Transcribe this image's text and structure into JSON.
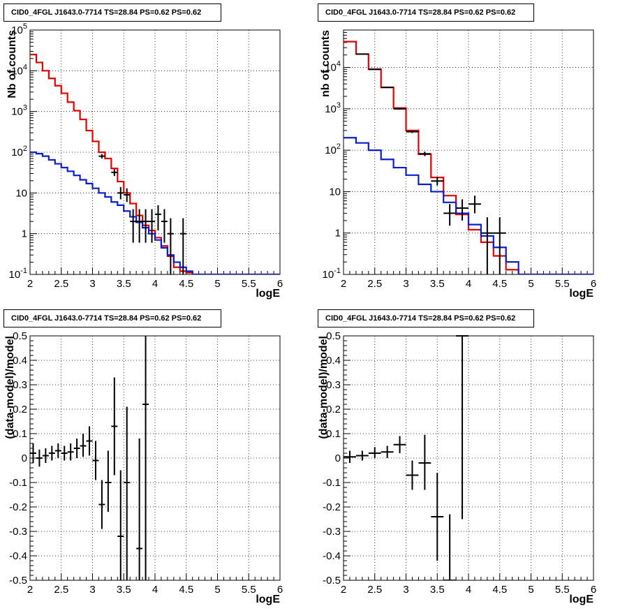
{
  "colors": {
    "data": "#000000",
    "total_model": "#e00000",
    "component_model": "#0a1ecc",
    "grid": "#000000"
  },
  "chart_data": [
    {
      "id": "counts-left",
      "type": "line",
      "title": "CID0_4FGL J1643.0-7714 TS=28.84 PS=0.62 PS=0.62",
      "xlabel": "logE",
      "ylabel": "Nb of counts",
      "xlim": [
        2,
        6
      ],
      "ylim": [
        0.1,
        100000
      ],
      "yscale": "log",
      "grid": true,
      "x_ticks": [
        "2",
        "2.5",
        "3",
        "3.5",
        "4",
        "4.5",
        "5",
        "5.5",
        "6"
      ],
      "y_ticks": [
        "10^{-1}",
        "1",
        "10",
        "10^{2}",
        "10^{3}",
        "10^{4}",
        "10^{5}"
      ],
      "bin_edges": [
        2.0,
        2.1,
        2.2,
        2.3,
        2.4,
        2.5,
        2.6,
        2.7,
        2.8,
        2.9,
        3.0,
        3.1,
        3.2,
        3.3,
        3.4,
        3.5,
        3.6,
        3.7,
        3.8,
        3.9,
        4.0,
        4.1,
        4.2,
        4.3,
        4.4,
        4.5,
        4.6,
        4.7,
        4.8,
        4.9,
        5.0,
        5.1,
        5.2,
        5.3,
        5.4,
        5.5,
        5.6,
        5.7,
        5.8,
        5.9,
        6.0
      ],
      "series": [
        {
          "name": "",
          "style": "step",
          "color": "#e00000",
          "values": [
            25000,
            16000,
            10000,
            6500,
            4300,
            2800,
            1700,
            1050,
            640,
            340,
            185,
            100,
            70,
            40,
            19,
            10,
            5.5,
            2.8,
            1.6,
            1.2,
            0.8,
            0.5,
            0.28,
            0.15,
            0.12,
            0.11,
            0.1,
            0.1,
            0.1,
            0.1,
            0.1,
            0.1,
            0.1,
            0.1,
            0.1,
            0.1,
            0.1,
            0.1,
            0.1,
            0.1
          ]
        },
        {
          "name": "",
          "style": "step",
          "color": "#0a1ecc",
          "values": [
            100,
            92,
            80,
            65,
            52,
            42,
            34,
            27,
            21,
            17,
            13,
            10,
            8,
            6,
            5,
            3.6,
            2.6,
            1.9,
            1.4,
            1.0,
            0.7,
            0.45,
            0.3,
            0.2,
            0.15,
            0.12,
            0.1,
            0.1,
            0.1,
            0.1,
            0.1,
            0.1,
            0.1,
            0.1,
            0.1,
            0.1,
            0.1,
            0.1,
            0.1,
            0.1
          ]
        },
        {
          "name": "",
          "style": "errorbar",
          "color": "#000000",
          "points": [
            {
              "x": 3.15,
              "y": 80,
              "lo": 70,
              "hi": 90,
              "xerr": 0.05
            },
            {
              "x": 3.35,
              "y": 32,
              "lo": 26,
              "hi": 38,
              "xerr": 0.05
            },
            {
              "x": 3.45,
              "y": 10,
              "lo": 7,
              "hi": 14,
              "xerr": 0.05
            },
            {
              "x": 3.55,
              "y": 9,
              "lo": 6,
              "hi": 13,
              "xerr": 0.05
            },
            {
              "x": 3.65,
              "y": 2,
              "lo": 0.6,
              "hi": 4,
              "xerr": 0.05
            },
            {
              "x": 3.75,
              "y": 2,
              "lo": 0.6,
              "hi": 4,
              "xerr": 0.05
            },
            {
              "x": 3.85,
              "y": 2,
              "lo": 0.6,
              "hi": 4,
              "xerr": 0.05
            },
            {
              "x": 3.95,
              "y": 2,
              "lo": 0.6,
              "hi": 4,
              "xerr": 0.05
            },
            {
              "x": 4.05,
              "y": 3,
              "lo": 1.2,
              "hi": 5,
              "xerr": 0.05
            },
            {
              "x": 4.15,
              "y": 2,
              "lo": 0.6,
              "hi": 4,
              "xerr": 0.05
            },
            {
              "x": 4.25,
              "y": 1,
              "lo": 0.1,
              "hi": 2.4,
              "xerr": 0.05
            },
            {
              "x": 4.45,
              "y": 1,
              "lo": 0.1,
              "hi": 2.4,
              "xerr": 0.05
            }
          ]
        }
      ]
    },
    {
      "id": "counts-right",
      "type": "line",
      "title": "CID0_4FGL J1643.0-7714 TS=28.84 PS=0.62 PS=0.62",
      "xlabel": "logE",
      "ylabel": "nb of counts",
      "xlim": [
        2,
        6
      ],
      "ylim": [
        0.1,
        80000
      ],
      "yscale": "log",
      "grid": true,
      "x_ticks": [
        "2",
        "2.5",
        "3",
        "3.5",
        "4",
        "4.5",
        "5",
        "5.5",
        "6"
      ],
      "y_ticks": [
        "10^{-1}",
        "1",
        "10",
        "10^{2}",
        "10^{3}",
        "10^{4}"
      ],
      "bin_edges": [
        2.0,
        2.2,
        2.4,
        2.6,
        2.8,
        3.0,
        3.2,
        3.4,
        3.6,
        3.8,
        4.0,
        4.2,
        4.4,
        4.6,
        4.8,
        5.0,
        5.2,
        5.4,
        5.6,
        5.8,
        6.0
      ],
      "series": [
        {
          "name": "",
          "style": "step",
          "color": "#e00000",
          "values": [
            42000,
            21000,
            9000,
            3300,
            1050,
            300,
            80,
            22,
            8,
            2.8,
            1.2,
            0.6,
            0.28,
            0.13,
            0.1,
            0.1,
            0.1,
            0.1,
            0.1,
            0.1
          ]
        },
        {
          "name": "",
          "style": "step",
          "color": "#0a1ecc",
          "values": [
            200,
            150,
            100,
            60,
            38,
            25,
            15,
            10,
            5.5,
            3,
            1.6,
            0.85,
            0.45,
            0.2,
            0.1,
            0.1,
            0.1,
            0.1,
            0.1,
            0.1
          ]
        },
        {
          "name": "",
          "style": "errorbar",
          "color": "#000000",
          "points": [
            {
              "x": 2.3,
              "y": 21000,
              "lo": 20500,
              "hi": 21500,
              "xerr": 0.1
            },
            {
              "x": 2.5,
              "y": 9000,
              "lo": 8800,
              "hi": 9200,
              "xerr": 0.1
            },
            {
              "x": 2.7,
              "y": 3300,
              "lo": 3200,
              "hi": 3400,
              "xerr": 0.1
            },
            {
              "x": 2.9,
              "y": 1000,
              "lo": 950,
              "hi": 1050,
              "xerr": 0.1
            },
            {
              "x": 3.1,
              "y": 280,
              "lo": 260,
              "hi": 300,
              "xerr": 0.1
            },
            {
              "x": 3.3,
              "y": 82,
              "lo": 72,
              "hi": 92,
              "xerr": 0.1
            },
            {
              "x": 3.5,
              "y": 18,
              "lo": 14,
              "hi": 23,
              "xerr": 0.1
            },
            {
              "x": 3.7,
              "y": 3,
              "lo": 1.5,
              "hi": 5,
              "xerr": 0.1
            },
            {
              "x": 3.9,
              "y": 4,
              "lo": 2,
              "hi": 6.5,
              "xerr": 0.1
            },
            {
              "x": 4.1,
              "y": 5,
              "lo": 3,
              "hi": 8,
              "xerr": 0.1
            },
            {
              "x": 4.3,
              "y": 1,
              "lo": 0.1,
              "hi": 2.4,
              "xerr": 0.1
            },
            {
              "x": 4.5,
              "y": 1,
              "lo": 0.1,
              "hi": 2.4,
              "xerr": 0.1
            }
          ]
        }
      ]
    },
    {
      "id": "residuals-left",
      "type": "scatter",
      "title": "CID0_4FGL J1643.0-7714 TS=28.84 PS=0.62 PS=0.62",
      "xlabel": "logE",
      "ylabel": "(data-model)/model",
      "xlim": [
        2,
        6
      ],
      "ylim": [
        -0.5,
        0.5
      ],
      "yscale": "linear",
      "grid": true,
      "x_ticks": [
        "2",
        "2.5",
        "3",
        "3.5",
        "4",
        "4.5",
        "5",
        "5.5",
        "6"
      ],
      "y_ticks": [
        "-0.5",
        "-0.4",
        "-0.3",
        "-0.2",
        "-0.1",
        "0",
        "0.1",
        "0.2",
        "0.3",
        "0.4",
        "0.5"
      ],
      "series": [
        {
          "name": "",
          "style": "errorbar",
          "color": "#000000",
          "points": [
            {
              "x": 2.05,
              "y": 0.02,
              "lo": -0.02,
              "hi": 0.06,
              "xerr": 0.05
            },
            {
              "x": 2.15,
              "y": 0.0,
              "lo": -0.035,
              "hi": 0.035,
              "xerr": 0.05
            },
            {
              "x": 2.25,
              "y": 0.01,
              "lo": -0.02,
              "hi": 0.04,
              "xerr": 0.05
            },
            {
              "x": 2.35,
              "y": 0.02,
              "lo": -0.01,
              "hi": 0.05,
              "xerr": 0.05
            },
            {
              "x": 2.45,
              "y": 0.03,
              "lo": 0.0,
              "hi": 0.06,
              "xerr": 0.05
            },
            {
              "x": 2.55,
              "y": 0.02,
              "lo": -0.01,
              "hi": 0.05,
              "xerr": 0.05
            },
            {
              "x": 2.65,
              "y": 0.025,
              "lo": -0.01,
              "hi": 0.06,
              "xerr": 0.05
            },
            {
              "x": 2.75,
              "y": 0.04,
              "lo": 0.0,
              "hi": 0.08,
              "xerr": 0.05
            },
            {
              "x": 2.85,
              "y": 0.05,
              "lo": 0.005,
              "hi": 0.1,
              "xerr": 0.05
            },
            {
              "x": 2.95,
              "y": 0.07,
              "lo": 0.01,
              "hi": 0.13,
              "xerr": 0.05
            },
            {
              "x": 3.05,
              "y": -0.01,
              "lo": -0.09,
              "hi": 0.07,
              "xerr": 0.05
            },
            {
              "x": 3.15,
              "y": -0.19,
              "lo": -0.29,
              "hi": -0.09,
              "xerr": 0.05
            },
            {
              "x": 3.25,
              "y": -0.1,
              "lo": -0.22,
              "hi": 0.03,
              "xerr": 0.05
            },
            {
              "x": 3.35,
              "y": 0.13,
              "lo": -0.07,
              "hi": 0.33,
              "xerr": 0.05
            },
            {
              "x": 3.45,
              "y": -0.32,
              "lo": -0.5,
              "hi": -0.05,
              "xerr": 0.05
            },
            {
              "x": 3.55,
              "y": -0.1,
              "lo": -0.5,
              "hi": 0.21,
              "xerr": 0.05
            },
            {
              "x": 3.75,
              "y": -0.37,
              "lo": -0.5,
              "hi": 0.08,
              "xerr": 0.05
            },
            {
              "x": 3.85,
              "y": 0.22,
              "lo": -0.5,
              "hi": 0.5,
              "xerr": 0.05
            }
          ]
        }
      ]
    },
    {
      "id": "residuals-right",
      "type": "scatter",
      "title": "CID0_4FGL J1643.0-7714 TS=28.84 PS=0.62 PS=0.62",
      "xlabel": "logE",
      "ylabel": "(data-model)/model",
      "xlim": [
        2,
        6
      ],
      "ylim": [
        -0.5,
        0.5
      ],
      "yscale": "linear",
      "grid": true,
      "x_ticks": [
        "2",
        "2.5",
        "3",
        "3.5",
        "4",
        "4.5",
        "5",
        "5.5",
        "6"
      ],
      "y_ticks": [
        "-0.5",
        "-0.4",
        "-0.3",
        "-0.2",
        "-0.1",
        "0",
        "0.1",
        "0.2",
        "0.3",
        "0.4",
        "0.5"
      ],
      "series": [
        {
          "name": "",
          "style": "errorbar",
          "color": "#000000",
          "points": [
            {
              "x": 2.1,
              "y": 0.005,
              "lo": -0.02,
              "hi": 0.03,
              "xerr": 0.1
            },
            {
              "x": 2.3,
              "y": 0.01,
              "lo": -0.01,
              "hi": 0.03,
              "xerr": 0.1
            },
            {
              "x": 2.5,
              "y": 0.02,
              "lo": 0.0,
              "hi": 0.045,
              "xerr": 0.1
            },
            {
              "x": 2.7,
              "y": 0.025,
              "lo": 0.0,
              "hi": 0.05,
              "xerr": 0.1
            },
            {
              "x": 2.9,
              "y": 0.055,
              "lo": 0.02,
              "hi": 0.09,
              "xerr": 0.1
            },
            {
              "x": 3.1,
              "y": -0.07,
              "lo": -0.13,
              "hi": -0.01,
              "xerr": 0.1
            },
            {
              "x": 3.3,
              "y": -0.02,
              "lo": -0.13,
              "hi": 0.095,
              "xerr": 0.1
            },
            {
              "x": 3.5,
              "y": -0.24,
              "lo": -0.42,
              "hi": -0.06,
              "xerr": 0.1
            },
            {
              "x": 3.7,
              "y": -0.5,
              "lo": -0.5,
              "hi": -0.23,
              "xerr": 0.1
            },
            {
              "x": 3.9,
              "y": 0.5,
              "lo": -0.25,
              "hi": 0.5,
              "xerr": 0.1
            }
          ]
        }
      ]
    }
  ]
}
